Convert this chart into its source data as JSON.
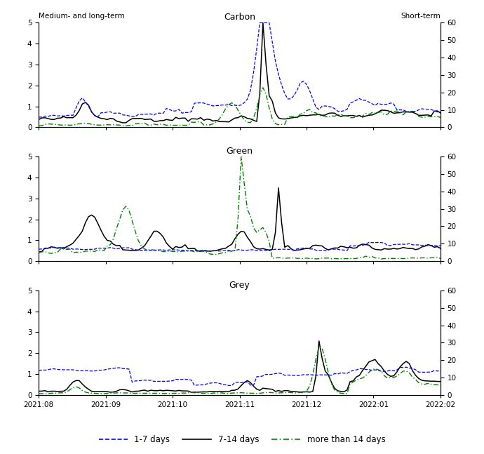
{
  "title_carbon": "Carbon",
  "title_green": "Green",
  "title_grey": "Grey",
  "left_label": "Medium- and long-term",
  "right_label": "Short-term",
  "left_ylim": [
    0,
    5
  ],
  "right_ylim": [
    0,
    60
  ],
  "left_yticks": [
    0,
    1,
    2,
    3,
    4,
    5
  ],
  "right_yticks": [
    0,
    10,
    20,
    30,
    40,
    50,
    60
  ],
  "xtick_labels": [
    "2021:08",
    "2021:09",
    "2021:10",
    "2021:11",
    "2021:12",
    "2022:01",
    "2022:02"
  ],
  "legend_labels": [
    "1-7 days",
    "7-14 days",
    "more than 14 days"
  ],
  "colors": {
    "blue_dashed": "#0000FF",
    "black_solid": "#000000",
    "green_dashdot": "#008000"
  },
  "n_points": 130,
  "figsize": [
    6.9,
    6.47
  ],
  "dpi": 100
}
